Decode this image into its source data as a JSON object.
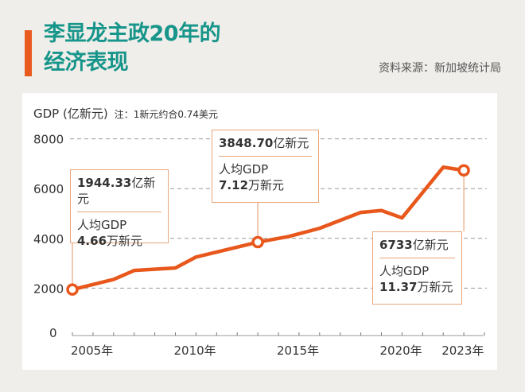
{
  "header": {
    "title_line1": "李显龙主政20年的",
    "title_line2": "经济表现",
    "source": "资料来源：新加坡统计局"
  },
  "colors": {
    "title": "#16958a",
    "accent": "#e85a1e",
    "line": "#e8571c",
    "callout_border": "#e9a57a"
  },
  "callouts": [
    {
      "gdp_value": "1944.33",
      "gdp_unit": "亿新元",
      "per_capita_label": "人均GDP",
      "per_capita_value": "4.66",
      "per_capita_unit": "万新元"
    },
    {
      "gdp_value": "3848.70",
      "gdp_unit": "亿新元",
      "per_capita_label": "人均GDP",
      "per_capita_value": "7.12",
      "per_capita_unit": "万新元"
    },
    {
      "gdp_value": "6733",
      "gdp_unit": "亿新元",
      "per_capita_label": "人均GDP",
      "per_capita_value": "11.37",
      "per_capita_unit": "万新元"
    }
  ],
  "chart_data": {
    "type": "line",
    "ylabel": "GDP (亿新元)",
    "note": "注：1新元约合0.74美元",
    "ylim": [
      0,
      8000
    ],
    "yticks": [
      0,
      2000,
      4000,
      6000,
      8000
    ],
    "xlim": [
      2005,
      2025
    ],
    "xtick_labels": [
      {
        "year": 2005,
        "label": "2005年"
      },
      {
        "year": 2010,
        "label": "2010年"
      },
      {
        "year": 2015,
        "label": "2015年"
      },
      {
        "year": 2020,
        "label": "2020年"
      },
      {
        "year": 2023,
        "label": "2023年"
      }
    ],
    "grid": "horizontal dashed",
    "series": [
      {
        "x": [
          2005,
          2007,
          2008,
          2010,
          2011,
          2014,
          2015.5,
          2017,
          2019,
          2020,
          2021,
          2023,
          2024
        ],
        "y": [
          1944.33,
          2350,
          2710,
          2810,
          3250,
          3848.7,
          4075,
          4405,
          5045,
          5120,
          4825,
          6860,
          6733
        ]
      }
    ],
    "highlighted_points": [
      0,
      5,
      12
    ]
  }
}
